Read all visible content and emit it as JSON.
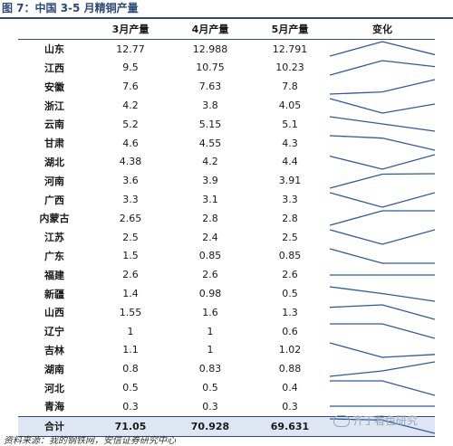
{
  "title": "图 7：中国 3-5 月精铜产量",
  "columns": [
    "",
    "3月产量",
    "4月产量",
    "5月产量",
    "变化"
  ],
  "rows": [
    {
      "province": "山东",
      "m3": "12.77",
      "m4": "12.988",
      "m5": "12.791",
      "values": [
        12.77,
        12.988,
        12.791
      ]
    },
    {
      "province": "江西",
      "m3": "9.5",
      "m4": "10.75",
      "m5": "10.23",
      "values": [
        9.5,
        10.75,
        10.23
      ]
    },
    {
      "province": "安徽",
      "m3": "7.6",
      "m4": "7.63",
      "m5": "7.8",
      "values": [
        7.6,
        7.63,
        7.8
      ]
    },
    {
      "province": "浙江",
      "m3": "4.2",
      "m4": "3.8",
      "m5": "4.05",
      "values": [
        4.2,
        3.8,
        4.05
      ]
    },
    {
      "province": "云南",
      "m3": "5.2",
      "m4": "5.15",
      "m5": "5.1",
      "values": [
        5.2,
        5.15,
        5.1
      ]
    },
    {
      "province": "甘肃",
      "m3": "4.6",
      "m4": "4.55",
      "m5": "4.3",
      "values": [
        4.6,
        4.55,
        4.3
      ]
    },
    {
      "province": "湖北",
      "m3": "4.38",
      "m4": "4.2",
      "m5": "4.4",
      "values": [
        4.38,
        4.2,
        4.4
      ]
    },
    {
      "province": "河南",
      "m3": "3.6",
      "m4": "3.9",
      "m5": "3.91",
      "values": [
        3.6,
        3.9,
        3.91
      ]
    },
    {
      "province": "广西",
      "m3": "3.3",
      "m4": "3.1",
      "m5": "3.3",
      "values": [
        3.3,
        3.1,
        3.3
      ]
    },
    {
      "province": "内蒙古",
      "m3": "2.65",
      "m4": "2.8",
      "m5": "2.8",
      "values": [
        2.65,
        2.8,
        2.8
      ]
    },
    {
      "province": "江苏",
      "m3": "2.5",
      "m4": "2.4",
      "m5": "2.5",
      "values": [
        2.5,
        2.4,
        2.5
      ]
    },
    {
      "province": "广东",
      "m3": "1.5",
      "m4": "0.85",
      "m5": "0.85",
      "values": [
        1.5,
        0.85,
        0.85
      ]
    },
    {
      "province": "福建",
      "m3": "2.6",
      "m4": "2.6",
      "m5": "2.6",
      "values": [
        2.6,
        2.6,
        2.6
      ]
    },
    {
      "province": "新疆",
      "m3": "1.4",
      "m4": "0.98",
      "m5": "0.5",
      "values": [
        1.4,
        0.98,
        0.5
      ]
    },
    {
      "province": "山西",
      "m3": "1.55",
      "m4": "1.6",
      "m5": "1.3",
      "values": [
        1.55,
        1.6,
        1.3
      ]
    },
    {
      "province": "辽宁",
      "m3": "1",
      "m4": "1",
      "m5": "0.6",
      "values": [
        1,
        1,
        0.6
      ]
    },
    {
      "province": "吉林",
      "m3": "1.1",
      "m4": "1",
      "m5": "1.02",
      "values": [
        1.1,
        1,
        1.02
      ]
    },
    {
      "province": "湖南",
      "m3": "0.8",
      "m4": "0.83",
      "m5": "0.88",
      "values": [
        0.8,
        0.83,
        0.88
      ]
    },
    {
      "province": "河北",
      "m3": "0.5",
      "m4": "0.5",
      "m5": "0.4",
      "values": [
        0.5,
        0.5,
        0.4
      ]
    },
    {
      "province": "青海",
      "m3": "0.3",
      "m4": "0.3",
      "m5": "0.3",
      "values": [
        0.3,
        0.3,
        0.3
      ]
    }
  ],
  "total": {
    "label": "合计",
    "m3": "71.05",
    "m4": "70.928",
    "m5": "69.631",
    "values": [
      71.05,
      70.928,
      69.631
    ]
  },
  "source": "资料来源：我的钢铁网，安信证券研究中心",
  "watermark": "齐丁看色研究",
  "colors": {
    "accent": "#2c4a7a",
    "sparkline": "#2c5aa0",
    "total_bg": "#dfe6f3"
  }
}
